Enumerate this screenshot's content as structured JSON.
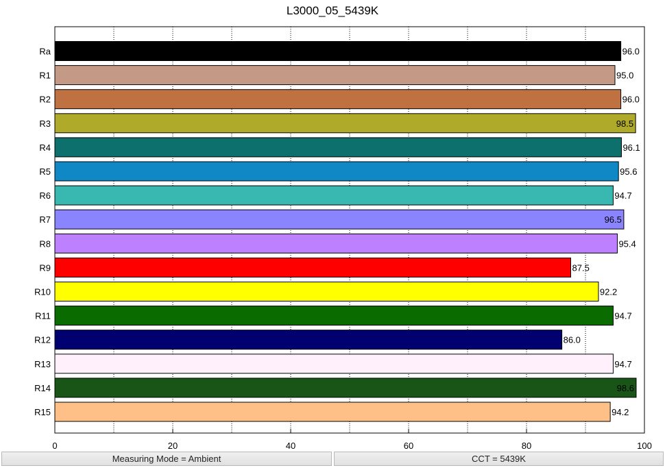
{
  "chart_data": {
    "type": "bar",
    "orientation": "horizontal",
    "title": "L3000_05_5439K",
    "xlim": [
      0,
      100
    ],
    "x_ticks": [
      0,
      20,
      40,
      60,
      80,
      100
    ],
    "grid": "vertical-dotted",
    "show_values": true,
    "categories": [
      "Ra",
      "R1",
      "R2",
      "R3",
      "R4",
      "R5",
      "R6",
      "R7",
      "R8",
      "R9",
      "R10",
      "R11",
      "R12",
      "R13",
      "R14",
      "R15"
    ],
    "values": [
      96.0,
      95.0,
      96.0,
      98.5,
      96.1,
      95.6,
      94.7,
      96.5,
      95.4,
      87.5,
      92.2,
      94.7,
      86.0,
      94.7,
      98.6,
      94.2
    ],
    "value_labels": [
      "96.0",
      "95.0",
      "96.0",
      "98.5",
      "96.1",
      "95.6",
      "94.7",
      "96.5",
      "95.4",
      "87.5",
      "92.2",
      "94.7",
      "86.0",
      "94.7",
      "98.6",
      "94.2"
    ],
    "colors": [
      "#000000",
      "#c49a86",
      "#c07142",
      "#b0aa2a",
      "#0e706d",
      "#1088c6",
      "#38b8b0",
      "#8a85ff",
      "#bd80ff",
      "#ff0000",
      "#ffff00",
      "#0a6b00",
      "#000070",
      "#fff0fc",
      "#1a5518",
      "#ffc088"
    ]
  },
  "status": {
    "mode": "Measuring Mode = Ambient",
    "cct": "CCT = 5439K"
  }
}
